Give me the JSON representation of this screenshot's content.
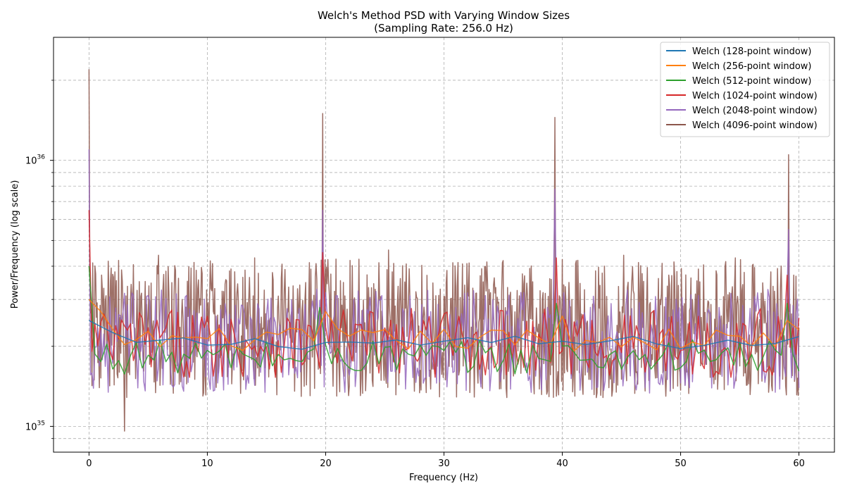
{
  "chart_data": {
    "type": "line",
    "title_line1": "Welch's Method PSD with Varying Window Sizes",
    "title_line2": "(Sampling Rate: 256.0 Hz)",
    "xlabel": "Frequency (Hz)",
    "ylabel": "Power/Frequency (log scale)",
    "xlim": [
      -3,
      63
    ],
    "ylim": [
      8e+34,
      2.9e+36
    ],
    "yscale": "log",
    "grid": true,
    "legend_position": "top-right",
    "x_ticks": [
      0,
      10,
      20,
      30,
      40,
      50,
      60
    ],
    "y_major_ticks": [
      {
        "value": 1e+35,
        "base": "10",
        "exp": "35"
      },
      {
        "value": 1e+36,
        "base": "10",
        "exp": "36"
      }
    ],
    "y_minor_ticks": [
      9e+34,
      2e+35,
      3e+35,
      4e+35,
      5e+35,
      6e+35,
      7e+35,
      8e+35,
      9e+35,
      2e+36
    ],
    "colors": [
      "#1f77b4",
      "#ff7f0e",
      "#2ca02c",
      "#d62728",
      "#9467bd",
      "#8c564b"
    ],
    "series": [
      {
        "name": "Welch (128-point window)",
        "color": "#1f77b4",
        "freq_step": 2.0,
        "base": 2.05e+35,
        "var": 0.06,
        "peaks": [
          [
            0,
            2.5e+35
          ],
          [
            2,
            2.25e+35
          ]
        ]
      },
      {
        "name": "Welch (256-point window)",
        "color": "#ff7f0e",
        "freq_step": 1.0,
        "base": 2.1e+35,
        "var": 0.1,
        "peaks": [
          [
            0,
            3e+35
          ],
          [
            1,
            2.7e+35
          ],
          [
            20,
            2.7e+35
          ],
          [
            40,
            2.6e+35
          ],
          [
            59,
            2.5e+35
          ]
        ]
      },
      {
        "name": "Welch (512-point window)",
        "color": "#2ca02c",
        "freq_step": 0.5,
        "base": 1.8e+35,
        "var": 0.15,
        "peaks": [
          [
            0,
            4e+35
          ],
          [
            19.5,
            2.8e+35
          ],
          [
            39.5,
            2.9e+35
          ],
          [
            59,
            2.9e+35
          ]
        ]
      },
      {
        "name": "Welch (1024-point window)",
        "color": "#d62728",
        "freq_step": 0.25,
        "base": 2e+35,
        "var": 0.3,
        "peaks": [
          [
            0,
            6.5e+35
          ],
          [
            19.75,
            4.5e+35
          ],
          [
            39.5,
            4.3e+35
          ],
          [
            59,
            3.7e+35
          ]
        ]
      },
      {
        "name": "Welch (2048-point window)",
        "color": "#9467bd",
        "freq_step": 0.125,
        "base": 2e+35,
        "var": 0.45,
        "peaks": [
          [
            0,
            1.1e+36
          ],
          [
            19.75,
            6.5e+35
          ],
          [
            39.4,
            7.8e+35
          ],
          [
            59.1,
            5.5e+35
          ]
        ]
      },
      {
        "name": "Welch (4096-point window)",
        "color": "#8c564b",
        "freq_step": 0.0625,
        "base": 2.2e+35,
        "var": 0.6,
        "peaks": [
          [
            0,
            2.2e+36
          ],
          [
            5.9,
            4.4e+35
          ],
          [
            14,
            4.3e+35
          ],
          [
            19.75,
            1.5e+36
          ],
          [
            25.3,
            4.6e+35
          ],
          [
            35,
            4.2e+35
          ],
          [
            39.4,
            1.45e+36
          ],
          [
            45.2,
            4.4e+35
          ],
          [
            54.6,
            4.3e+35
          ],
          [
            59.1,
            1.05e+36
          ]
        ],
        "dips": [
          [
            3,
            9.6e+34
          ]
        ]
      }
    ]
  }
}
